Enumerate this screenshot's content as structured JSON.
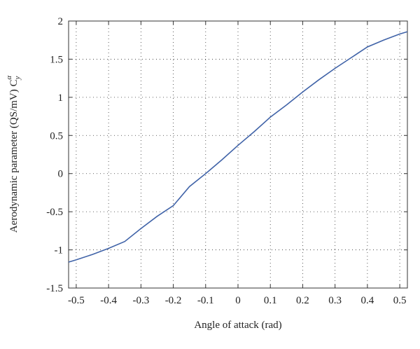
{
  "chart_data": {
    "type": "line",
    "xlabel": "Angle of attack (rad)",
    "ylabel": {
      "text": "Aerodynamic parameter (QS/mV) C",
      "sub": "y",
      "sup": "α"
    },
    "x": [
      -0.5236,
      -0.5,
      -0.45,
      -0.4,
      -0.35,
      -0.3,
      -0.25,
      -0.2,
      -0.15,
      -0.1,
      -0.05,
      0,
      0.05,
      0.1,
      0.15,
      0.2,
      0.25,
      0.3,
      0.35,
      0.4,
      0.45,
      0.5,
      0.5236
    ],
    "series": [
      {
        "color": "#4063a8",
        "values": [
          -1.16,
          -1.13,
          -1.06,
          -0.98,
          -0.89,
          -0.72,
          -0.56,
          -0.42,
          -0.17,
          0.0,
          0.18,
          0.37,
          0.55,
          0.74,
          0.9,
          1.07,
          1.23,
          1.38,
          1.52,
          1.66,
          1.75,
          1.83,
          1.86
        ]
      }
    ],
    "xlim": [
      -0.5236,
      0.5236
    ],
    "ylim": [
      -1.5,
      2
    ],
    "xticks": [
      -0.5,
      -0.4,
      -0.3,
      -0.2,
      -0.1,
      0,
      0.1,
      0.2,
      0.3,
      0.4,
      0.5
    ],
    "yticks": [
      -1.5,
      -1,
      -0.5,
      0,
      0.5,
      1,
      1.5,
      2
    ],
    "grid": true
  }
}
